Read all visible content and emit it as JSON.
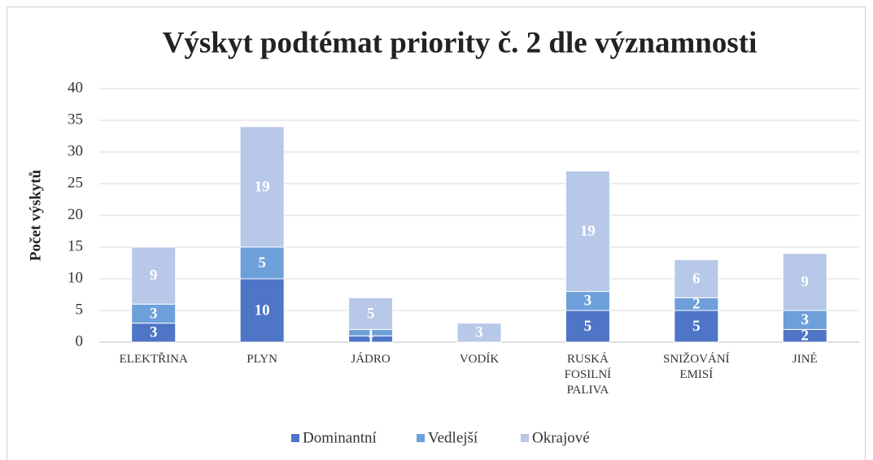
{
  "chart_data": {
    "type": "stacked_bar",
    "title": "Výskyt podtémat priority č. 2 dle významnosti",
    "y_label": "Počet výskytů",
    "categories": [
      "ELEKTŘINA",
      "PLYN",
      "JÁDRO",
      "VODÍK",
      "RUSKÁ FOSILNÍ PALIVA",
      "SNIŽOVÁNÍ EMISÍ",
      "JINÉ"
    ],
    "series": [
      {
        "name": "Dominantní",
        "color": "#4f75c6",
        "values": [
          3,
          10,
          1,
          0,
          5,
          5,
          2
        ]
      },
      {
        "name": "Vedlejší",
        "color": "#6d9fda",
        "values": [
          3,
          5,
          1,
          0,
          3,
          2,
          3
        ]
      },
      {
        "name": "Okrajové",
        "color": "#b7c8e8",
        "values": [
          9,
          19,
          5,
          3,
          19,
          6,
          9
        ]
      }
    ],
    "ylim": [
      0,
      40
    ],
    "yticks": [
      0,
      5,
      10,
      15,
      20,
      25,
      30,
      35,
      40
    ],
    "grid": true,
    "legend": "bottom"
  }
}
